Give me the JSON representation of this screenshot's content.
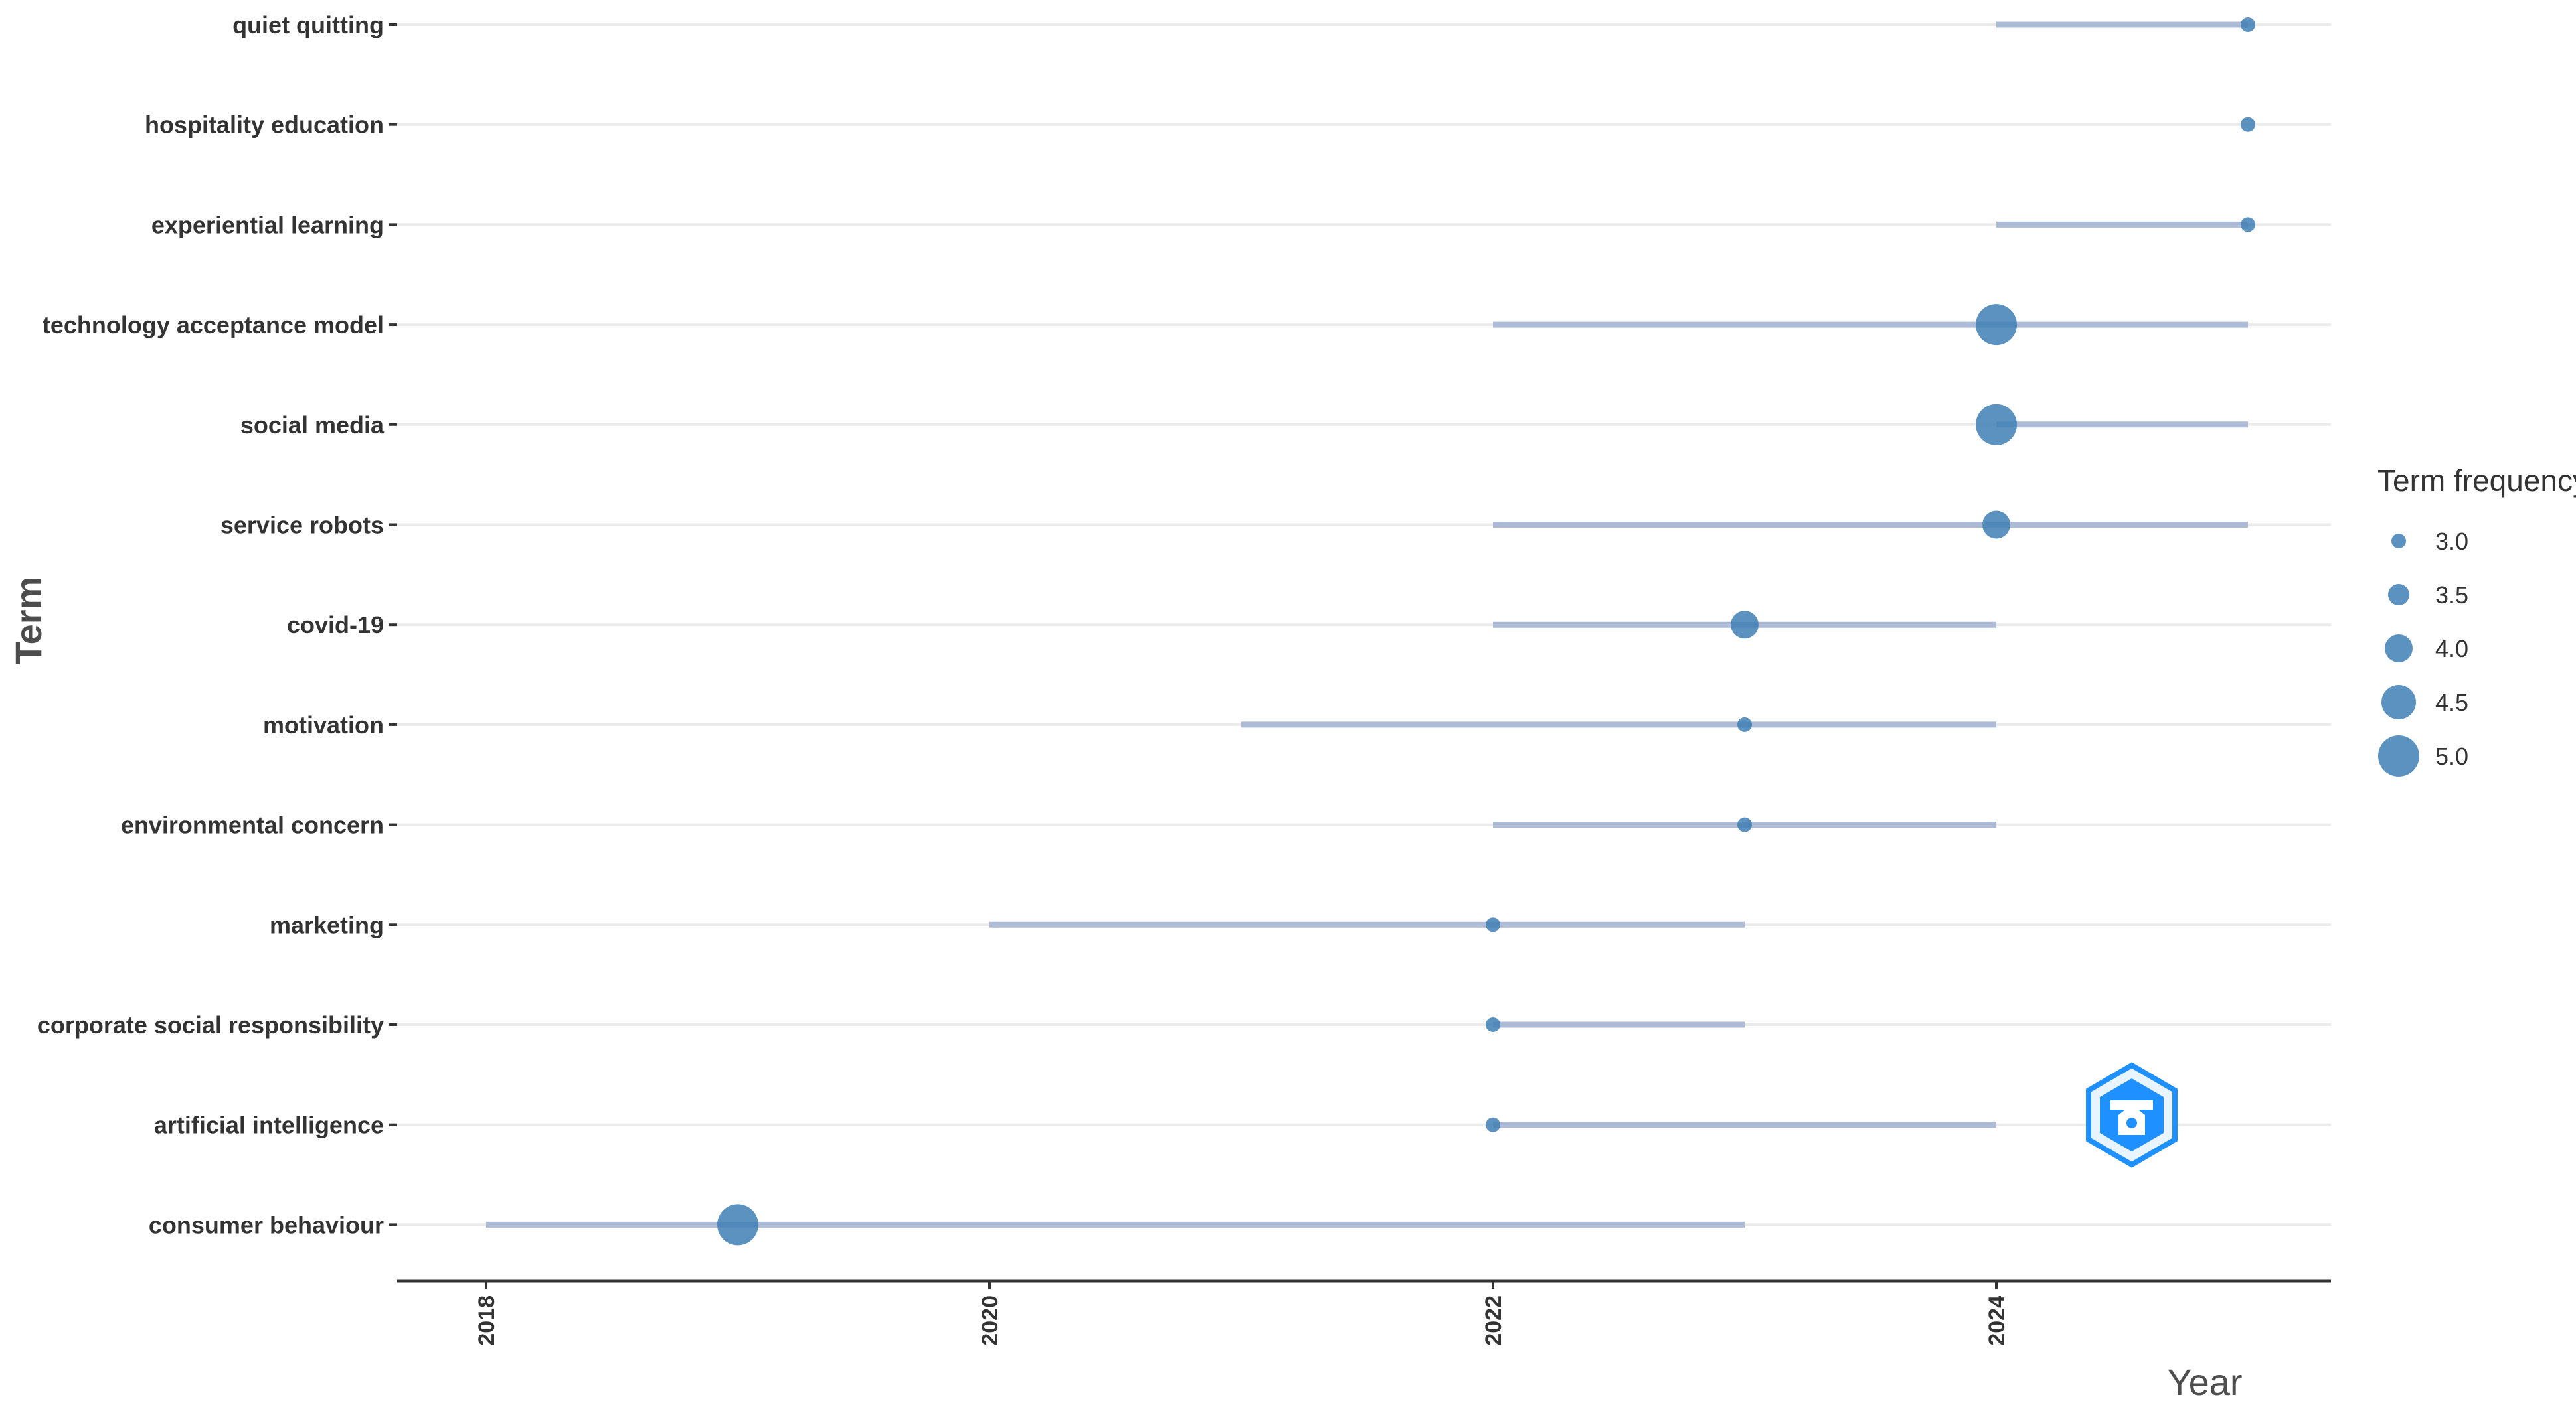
{
  "chart_data": {
    "type": "scatter",
    "xlabel": "Year",
    "ylabel": "Term",
    "xlim": [
      2017.6,
      2025.35
    ],
    "x_ticks": [
      "2018",
      "2020",
      "2022",
      "2024"
    ],
    "x_tick_values": [
      2018,
      2020,
      2022,
      2024
    ],
    "grid": "horizontal",
    "legend_position": "right",
    "legend": {
      "title": "Term frequency",
      "entries": [
        {
          "label": "3.0",
          "value": 3.0
        },
        {
          "label": "3.5",
          "value": 3.5
        },
        {
          "label": "4.0",
          "value": 4.0
        },
        {
          "label": "4.5",
          "value": 4.5
        },
        {
          "label": "5.0",
          "value": 5.0
        }
      ]
    },
    "colors": {
      "point": "#3f7fb5",
      "segment": "#aebbd6",
      "grid": "#ebebeb",
      "axis": "#333333"
    },
    "terms": [
      {
        "term": "quiet quitting",
        "year_start": 2024,
        "year_end": 2025,
        "year_point": 2025,
        "freq": 3
      },
      {
        "term": "hospitality education",
        "year_start": 2025,
        "year_end": 2025,
        "year_point": 2025,
        "freq": 3
      },
      {
        "term": "experiential learning",
        "year_start": 2024,
        "year_end": 2025,
        "year_point": 2025,
        "freq": 3
      },
      {
        "term": "technology acceptance model",
        "year_start": 2022,
        "year_end": 2025,
        "year_point": 2024,
        "freq": 5
      },
      {
        "term": "social media",
        "year_start": 2024,
        "year_end": 2025,
        "year_point": 2024,
        "freq": 5
      },
      {
        "term": "service robots",
        "year_start": 2022,
        "year_end": 2025,
        "year_point": 2024,
        "freq": 4
      },
      {
        "term": "covid-19",
        "year_start": 2022,
        "year_end": 2024,
        "year_point": 2023,
        "freq": 4
      },
      {
        "term": "motivation",
        "year_start": 2021,
        "year_end": 2024,
        "year_point": 2023,
        "freq": 3
      },
      {
        "term": "environmental concern",
        "year_start": 2022,
        "year_end": 2024,
        "year_point": 2023,
        "freq": 3
      },
      {
        "term": "marketing",
        "year_start": 2020,
        "year_end": 2023,
        "year_point": 2022,
        "freq": 3
      },
      {
        "term": "corporate social responsibility",
        "year_start": 2022,
        "year_end": 2023,
        "year_point": 2022,
        "freq": 3
      },
      {
        "term": "artificial intelligence",
        "year_start": 2022,
        "year_end": 2024,
        "year_point": 2022,
        "freq": 3
      },
      {
        "term": "consumer behaviour",
        "year_start": 2018,
        "year_end": 2023,
        "year_point": 2019,
        "freq": 5
      }
    ]
  },
  "watermark": {
    "icon": "hexagon-logo-icon",
    "color": "#1e90ff"
  }
}
